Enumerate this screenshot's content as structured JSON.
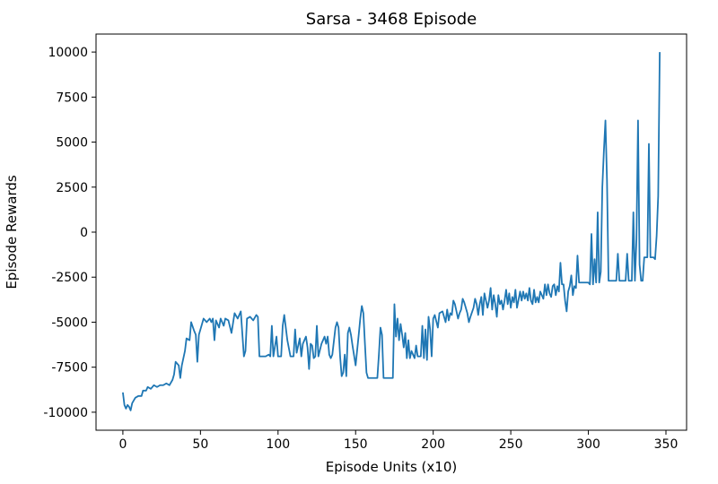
{
  "chart_data": {
    "type": "line",
    "title": "Sarsa - 3468 Episode",
    "x_label": "Episode Units (x10)",
    "y_label": "Episode Rewards",
    "xlim": [
      -17.3,
      363.3
    ],
    "ylim": [
      -11000,
      11000
    ],
    "xticks": [
      0,
      50,
      100,
      150,
      200,
      250,
      300,
      350
    ],
    "yticks": [
      -10000,
      -7500,
      -5000,
      -2500,
      0,
      2500,
      5000,
      7500,
      10000
    ],
    "grid": false,
    "series": [
      {
        "color": "#1f77b4",
        "x": [
          0,
          1,
          2,
          3,
          4,
          5,
          6,
          8,
          10,
          12,
          13,
          15,
          16,
          18,
          20,
          22,
          24,
          26,
          28,
          30,
          32,
          33,
          34,
          36,
          37,
          38,
          40,
          41,
          43,
          44,
          46,
          47,
          48,
          49,
          50,
          52,
          54,
          56,
          57,
          58,
          59,
          60,
          62,
          63,
          65,
          66,
          68,
          70,
          72,
          74,
          76,
          78,
          79,
          80,
          82,
          84,
          86,
          87,
          88,
          90,
          92,
          94,
          95,
          96,
          97,
          99,
          100,
          102,
          103,
          104,
          106,
          108,
          110,
          111,
          112,
          114,
          115,
          116,
          118,
          119,
          120,
          121,
          122,
          123,
          124,
          125,
          126,
          128,
          130,
          131,
          132,
          133,
          134,
          135,
          137,
          138,
          139,
          140,
          141,
          142,
          143,
          144,
          145,
          146,
          147,
          148,
          150,
          152,
          153,
          154,
          155,
          156,
          157,
          158,
          160,
          162,
          164,
          165,
          166,
          167,
          168,
          170,
          172,
          174,
          175,
          176,
          177,
          178,
          179,
          180,
          181,
          182,
          183,
          184,
          185,
          186,
          188,
          189,
          190,
          192,
          193,
          194,
          195,
          196,
          197,
          198,
          199,
          200,
          201,
          203,
          204,
          206,
          208,
          209,
          210,
          211,
          212,
          213,
          214,
          216,
          217,
          218,
          219,
          220,
          222,
          223,
          224,
          226,
          227,
          228,
          229,
          230,
          231,
          232,
          233,
          235,
          236,
          237,
          238,
          239,
          240,
          241,
          242,
          243,
          244,
          245,
          246,
          247,
          248,
          249,
          250,
          251,
          252,
          253,
          254,
          256,
          257,
          258,
          259,
          260,
          261,
          262,
          263,
          264,
          265,
          266,
          267,
          268,
          269,
          270,
          271,
          272,
          273,
          274,
          275,
          276,
          277,
          278,
          279,
          280,
          281,
          282,
          283,
          284,
          285,
          286,
          287,
          288,
          289,
          290,
          291,
          292,
          293,
          294,
          296,
          298,
          300,
          301,
          302,
          303,
          304,
          305,
          306,
          307,
          308,
          309,
          310,
          311,
          312,
          313,
          315,
          317,
          318,
          319,
          320,
          322,
          324,
          325,
          326,
          328,
          329,
          330,
          331,
          332,
          333,
          334,
          335,
          336,
          338,
          339,
          340,
          342,
          343,
          344,
          345,
          346
        ],
        "values": [
          -8900,
          -9600,
          -9800,
          -9600,
          -9700,
          -9900,
          -9500,
          -9200,
          -9100,
          -9100,
          -8800,
          -8800,
          -8600,
          -8700,
          -8500,
          -8600,
          -8500,
          -8500,
          -8400,
          -8500,
          -8200,
          -7900,
          -7200,
          -7400,
          -8100,
          -7400,
          -6600,
          -5900,
          -6000,
          -5000,
          -5500,
          -5700,
          -7200,
          -5700,
          -5400,
          -4800,
          -5000,
          -4800,
          -5000,
          -4800,
          -6000,
          -4900,
          -5300,
          -4800,
          -5200,
          -4800,
          -4900,
          -5600,
          -4500,
          -4800,
          -4400,
          -6900,
          -6600,
          -4800,
          -4700,
          -4900,
          -4600,
          -4700,
          -6900,
          -6900,
          -6900,
          -6800,
          -6900,
          -5200,
          -6900,
          -5800,
          -6900,
          -6900,
          -5200,
          -4600,
          -6000,
          -6900,
          -6900,
          -5400,
          -6700,
          -5900,
          -6900,
          -6200,
          -5800,
          -6400,
          -7600,
          -6200,
          -6300,
          -7000,
          -6900,
          -5200,
          -6900,
          -6200,
          -5800,
          -6200,
          -5800,
          -6800,
          -7000,
          -6800,
          -5300,
          -5000,
          -5300,
          -6900,
          -8000,
          -7800,
          -6800,
          -8000,
          -5600,
          -5300,
          -5700,
          -6300,
          -7400,
          -5700,
          -4800,
          -4100,
          -4500,
          -6200,
          -7800,
          -8100,
          -8100,
          -8100,
          -8100,
          -6800,
          -5300,
          -5700,
          -8100,
          -8100,
          -8100,
          -8100,
          -4000,
          -5800,
          -4800,
          -6000,
          -5100,
          -5700,
          -6400,
          -5600,
          -7000,
          -6000,
          -7000,
          -6600,
          -7000,
          -6300,
          -6900,
          -6900,
          -5200,
          -7000,
          -5400,
          -7100,
          -4700,
          -5400,
          -6900,
          -4800,
          -4600,
          -5300,
          -4500,
          -4400,
          -5000,
          -4300,
          -4900,
          -4500,
          -4600,
          -3800,
          -4000,
          -4800,
          -4500,
          -4300,
          -3700,
          -3900,
          -4500,
          -5000,
          -4700,
          -4200,
          -3700,
          -4000,
          -4600,
          -4000,
          -3600,
          -4600,
          -3400,
          -4200,
          -3800,
          -3100,
          -4300,
          -3500,
          -4000,
          -4700,
          -3500,
          -4000,
          -3800,
          -4300,
          -3800,
          -3200,
          -4000,
          -3400,
          -4200,
          -3600,
          -3900,
          -3200,
          -4200,
          -3300,
          -3800,
          -3300,
          -3700,
          -3400,
          -3800,
          -3100,
          -3800,
          -4000,
          -3200,
          -3900,
          -3600,
          -3900,
          -3300,
          -3500,
          -3700,
          -2900,
          -3500,
          -2900,
          -3400,
          -3600,
          -3000,
          -2900,
          -3500,
          -3000,
          -3300,
          -1700,
          -2900,
          -2900,
          -3800,
          -4400,
          -3300,
          -3000,
          -2400,
          -3500,
          -3000,
          -3100,
          -1300,
          -2800,
          -2800,
          -2800,
          -2800,
          -2900,
          -100,
          -2900,
          -1500,
          -2800,
          1100,
          -2800,
          -2200,
          2500,
          4500,
          6200,
          2900,
          -2700,
          -2700,
          -2700,
          -2700,
          -1200,
          -2700,
          -2700,
          -2700,
          -1200,
          -2700,
          -2700,
          1100,
          -2700,
          -400,
          6200,
          -1800,
          -2700,
          -2700,
          -1400,
          -1400,
          4900,
          -1400,
          -1400,
          -1500,
          -200,
          2000,
          10000
        ]
      }
    ]
  }
}
